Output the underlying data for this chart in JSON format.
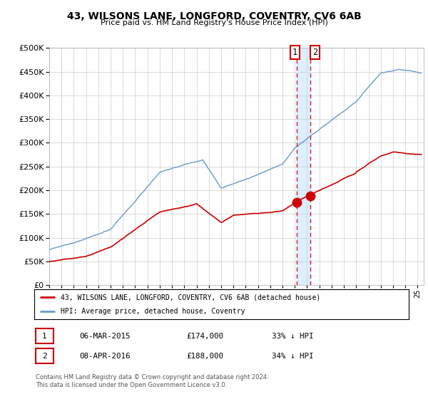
{
  "title": "43, WILSONS LANE, LONGFORD, COVENTRY, CV6 6AB",
  "subtitle": "Price paid vs. HM Land Registry's House Price Index (HPI)",
  "legend_label_red": "43, WILSONS LANE, LONGFORD, COVENTRY, CV6 6AB (detached house)",
  "legend_label_blue": "HPI: Average price, detached house, Coventry",
  "transaction1_date": "06-MAR-2015",
  "transaction1_price": "£174,000",
  "transaction1_hpi": "33% ↓ HPI",
  "transaction2_date": "08-APR-2016",
  "transaction2_price": "£188,000",
  "transaction2_hpi": "34% ↓ HPI",
  "footer": "Contains HM Land Registry data © Crown copyright and database right 2024.\nThis data is licensed under the Open Government Licence v3.0.",
  "vline1_x": 2015.17,
  "vline2_x": 2016.27,
  "marker1_x": 2015.17,
  "marker1_y": 174000,
  "marker2_x": 2016.27,
  "marker2_y": 188000,
  "ylim": [
    0,
    500000
  ],
  "xlim_start": 1995.0,
  "xlim_end": 2025.5,
  "red_color": "#cc0000",
  "blue_color": "#6699cc",
  "blue_shade_color": "#ddeeff",
  "vline_color": "#cc0000",
  "background_color": "#ffffff",
  "grid_color": "#cccccc"
}
